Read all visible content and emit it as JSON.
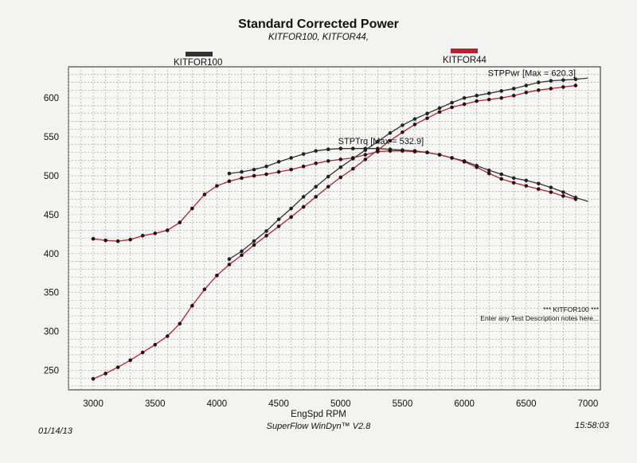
{
  "chart_data": {
    "type": "line",
    "title": "Standard Corrected Power",
    "subtitle": "KITFOR100, KITFOR44,",
    "xlabel": "EngSpd  RPM",
    "ylabel": "",
    "xlim": [
      2800,
      7100
    ],
    "ylim": [
      225,
      640
    ],
    "x_ticks": [
      3000,
      3500,
      4000,
      4500,
      5000,
      5500,
      6000,
      6500,
      7000
    ],
    "y_ticks": [
      250,
      300,
      350,
      400,
      450,
      500,
      550,
      600
    ],
    "grid": true,
    "legend": [
      {
        "label": "KITFOR100",
        "color": "#333333"
      },
      {
        "label": "KITFOR44",
        "color": "#b5232f"
      }
    ],
    "annotations": {
      "power_max": "STPPwr [Max = 620.3]",
      "torque_max": "STPTrq [Max = 532.9]"
    },
    "series": [
      {
        "name": "KITFOR100",
        "role": "power",
        "color": "#333333",
        "x": [
          4100,
          4200,
          4300,
          4400,
          4500,
          4600,
          4700,
          4800,
          4900,
          5000,
          5100,
          5200,
          5300,
          5400,
          5500,
          5600,
          5700,
          5800,
          5900,
          6000,
          6100,
          6200,
          6300,
          6400,
          6500,
          6600,
          6700,
          6800,
          6900
        ],
        "y": [
          393,
          403,
          416,
          429,
          444,
          458,
          473,
          486,
          499,
          511,
          522,
          533,
          544,
          555,
          565,
          573,
          580,
          587,
          594,
          600,
          603,
          606,
          609,
          612,
          616,
          620,
          622,
          623,
          624
        ]
      },
      {
        "name": "KITFOR100",
        "role": "torque",
        "color": "#333333",
        "x": [
          4100,
          4200,
          4300,
          4400,
          4500,
          4600,
          4700,
          4800,
          4900,
          5000,
          5100,
          5200,
          5300,
          5400,
          5500,
          5600,
          5700,
          5800,
          5900,
          6000,
          6100,
          6200,
          6300,
          6400,
          6500,
          6600,
          6700,
          6800,
          6900
        ],
        "y": [
          503,
          505,
          508,
          512,
          518,
          523,
          528,
          532,
          534,
          535,
          535,
          535,
          535,
          534,
          533,
          532,
          530,
          527,
          523,
          519,
          513,
          507,
          502,
          497,
          494,
          490,
          485,
          479,
          472
        ]
      },
      {
        "name": "KITFOR44",
        "role": "power",
        "color": "#b5232f",
        "x": [
          3000,
          3100,
          3200,
          3300,
          3400,
          3500,
          3600,
          3700,
          3800,
          3900,
          4000,
          4100,
          4200,
          4300,
          4400,
          4500,
          4600,
          4700,
          4800,
          4900,
          5000,
          5100,
          5200,
          5300,
          5400,
          5500,
          5600,
          5700,
          5800,
          5900,
          6000,
          6100,
          6200,
          6300,
          6400,
          6500,
          6600,
          6700,
          6800,
          6900
        ],
        "y": [
          239,
          246,
          254,
          263,
          273,
          283,
          294,
          310,
          333,
          354,
          372,
          386,
          398,
          411,
          423,
          435,
          447,
          460,
          473,
          486,
          498,
          509,
          521,
          533,
          545,
          556,
          566,
          574,
          582,
          588,
          592,
          596,
          598,
          600,
          603,
          607,
          610,
          612,
          614,
          616
        ]
      },
      {
        "name": "KITFOR44",
        "role": "torque",
        "color": "#b5232f",
        "x": [
          3000,
          3100,
          3200,
          3300,
          3400,
          3500,
          3600,
          3700,
          3800,
          3900,
          4000,
          4100,
          4200,
          4300,
          4400,
          4500,
          4600,
          4700,
          4800,
          4900,
          5000,
          5100,
          5200,
          5300,
          5400,
          5500,
          5600,
          5700,
          5800,
          5900,
          6000,
          6100,
          6200,
          6300,
          6400,
          6500,
          6600,
          6700,
          6800,
          6900
        ],
        "y": [
          419,
          417,
          416,
          418,
          423,
          426,
          430,
          440,
          458,
          476,
          487,
          493,
          497,
          500,
          502,
          505,
          508,
          512,
          516,
          519,
          521,
          523,
          527,
          531,
          532,
          532,
          531,
          530,
          527,
          523,
          518,
          511,
          503,
          496,
          491,
          487,
          483,
          479,
          474,
          470
        ]
      }
    ]
  },
  "notes": {
    "line1": "*** KITFOR100 ***",
    "line2": "Enter any Test Description notes here..."
  },
  "footer": {
    "date": "01/14/13",
    "app": "SuperFlow WinDyn™ V2.8",
    "time": "15:58:03"
  }
}
